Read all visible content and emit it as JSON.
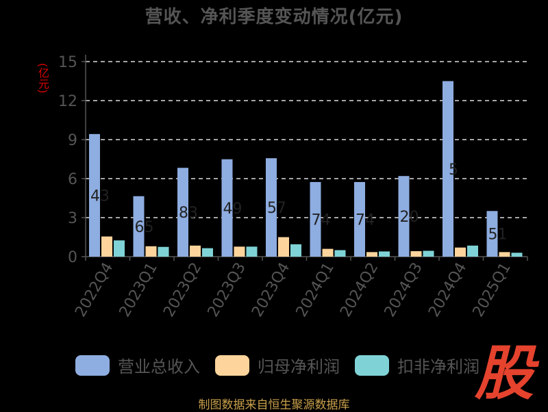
{
  "title": "营收、净利季度变动情况(亿元)",
  "unit_label": "(亿元)",
  "source": "制图数据来自恒生聚源数据库",
  "logo_text": "股",
  "colors": {
    "revenue": "#8EADE0",
    "net_profit": "#FDD49C",
    "deducted_profit": "#7FD3D6",
    "grid": "#dddddd",
    "axis_text": "#555555"
  },
  "chart_data": {
    "type": "bar",
    "title": "营收、净利季度变动情况(亿元)",
    "ylabel": "(亿元)",
    "ylim": [
      0,
      15
    ],
    "yticks": [
      0,
      3,
      6,
      9,
      12,
      15
    ],
    "grid": true,
    "legend_position": "bottom",
    "categories": [
      "2022Q4",
      "2023Q1",
      "2023Q2",
      "2023Q3",
      "2023Q4",
      "2024Q1",
      "2024Q2",
      "2024Q3",
      "2024Q4",
      "2025Q1"
    ],
    "series": [
      {
        "name": "营业总收入",
        "values": [
          9.43,
          4.65,
          6.83,
          7.49,
          7.57,
          5.74,
          5.74,
          6.2,
          13.5,
          3.51
        ],
        "labels": [
          "43",
          "65",
          "83",
          "49",
          "57",
          "74",
          "74",
          "20",
          "5",
          "51"
        ]
      },
      {
        "name": "归母净利润",
        "values": [
          1.55,
          0.8,
          0.85,
          0.77,
          1.5,
          0.6,
          0.35,
          0.42,
          0.7,
          0.35
        ]
      },
      {
        "name": "扣非净利润",
        "values": [
          1.25,
          0.75,
          0.65,
          0.77,
          0.95,
          0.5,
          0.4,
          0.45,
          0.85,
          0.3
        ]
      }
    ]
  }
}
